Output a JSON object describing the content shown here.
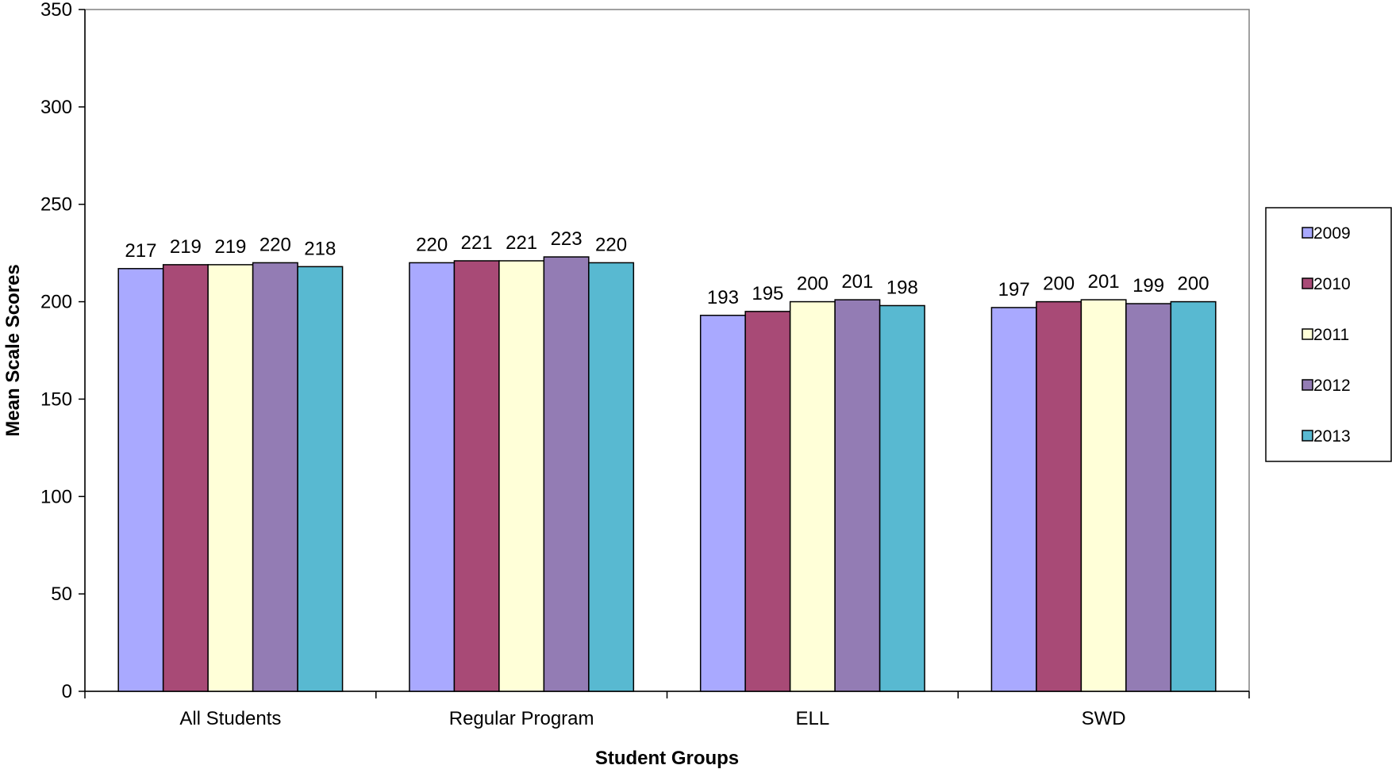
{
  "chart_data": {
    "type": "bar",
    "title": "",
    "xlabel": "Student Groups",
    "ylabel": "Mean Scale Scores",
    "ylim": [
      0,
      350
    ],
    "yticks": [
      0,
      50,
      100,
      150,
      200,
      250,
      300,
      350
    ],
    "categories": [
      "All Students",
      "Regular Program",
      "ELL",
      "SWD"
    ],
    "series": [
      {
        "name": "2009",
        "color": "#a9a9ff",
        "values": [
          217,
          220,
          193,
          197
        ]
      },
      {
        "name": "2010",
        "color": "#a84a76",
        "values": [
          219,
          221,
          195,
          200
        ]
      },
      {
        "name": "2011",
        "color": "#ffffd8",
        "values": [
          219,
          221,
          200,
          201
        ]
      },
      {
        "name": "2012",
        "color": "#937cb4",
        "values": [
          220,
          223,
          201,
          199
        ]
      },
      {
        "name": "2013",
        "color": "#58b9d1",
        "values": [
          218,
          220,
          198,
          200
        ]
      }
    ],
    "grid": false,
    "legend_position": "right"
  }
}
